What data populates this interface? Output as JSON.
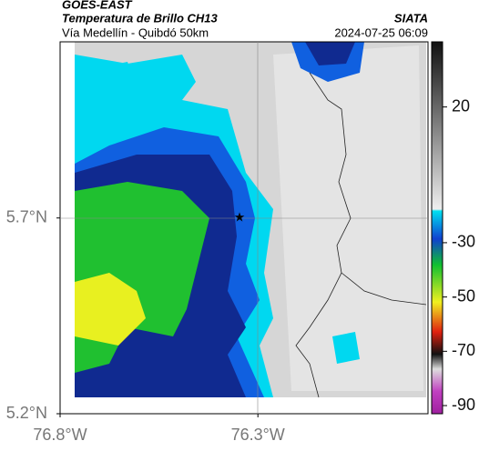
{
  "header": {
    "title": "GOES-EAST",
    "subtitle": "Temperatura de Brillo CH13",
    "source": "SIATA",
    "route": "Vía Medellín - Quibdó 50km",
    "timestamp": "2024-07-25 06:09"
  },
  "map": {
    "xlim": [
      -76.8,
      -75.87
    ],
    "ylim": [
      5.2,
      6.15
    ],
    "xticks": [
      {
        "value": -76.8,
        "label": "76.8°W"
      },
      {
        "value": -76.3,
        "label": "76.3°W"
      }
    ],
    "yticks": [
      {
        "value": 5.7,
        "label": "5.7°N"
      },
      {
        "value": 5.2,
        "label": "5.2°N"
      }
    ]
  },
  "colorbar": {
    "lim": [
      -93,
      44
    ],
    "ticks": [
      20,
      -30,
      -50,
      -70,
      -90
    ]
  }
}
